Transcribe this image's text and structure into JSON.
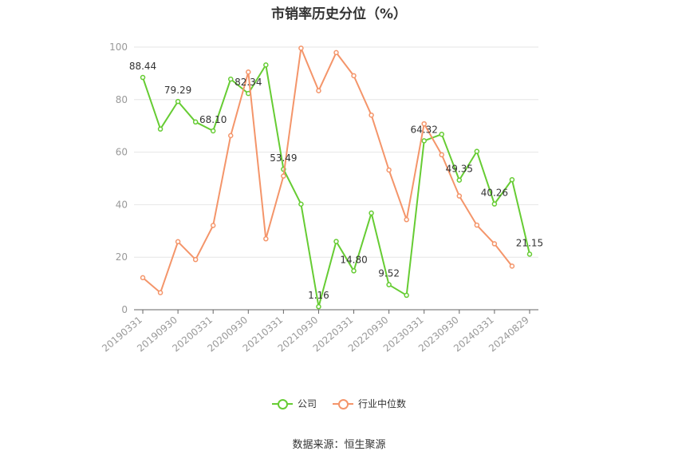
{
  "chart_data": {
    "type": "line",
    "title": "市销率历史分位（%）",
    "xlabel": "",
    "ylabel": "",
    "ylim": [
      0,
      100
    ],
    "yticks": [
      0,
      20,
      40,
      60,
      80,
      100
    ],
    "x": [
      "20190331",
      "20190630",
      "20190930",
      "20191231",
      "20200331",
      "20200630",
      "20200930",
      "20201231",
      "20210331",
      "20210630",
      "20210930",
      "20211231",
      "20220331",
      "20220630",
      "20220930",
      "20221231",
      "20230331",
      "20230630",
      "20230930",
      "20231231",
      "20240331",
      "20240630",
      "20240829"
    ],
    "xtick_labels": [
      "20190331",
      "20190930",
      "20200331",
      "20200930",
      "20210331",
      "20210930",
      "20220331",
      "20220930",
      "20230331",
      "20230930",
      "20240331",
      "20240829"
    ],
    "grid": true,
    "legend_position": "bottom",
    "series": [
      {
        "name": "公司",
        "color": "#66cc33",
        "values": [
          88.44,
          68.8,
          79.29,
          71.5,
          68.1,
          87.8,
          82.34,
          93.2,
          53.49,
          40.2,
          1.16,
          26.0,
          14.8,
          36.8,
          9.52,
          5.5,
          64.32,
          66.8,
          49.35,
          60.3,
          40.26,
          49.5,
          21.15
        ],
        "labels": {
          "0": "88.44",
          "2": "79.29",
          "4": "68.10",
          "6": "82.34",
          "8": "53.49",
          "10": "1.16",
          "12": "14.80",
          "14": "9.52",
          "16": "64.32",
          "18": "49.35",
          "20": "40.26",
          "22": "21.15"
        }
      },
      {
        "name": "行业中位数",
        "color": "#f4956a",
        "values": [
          12.2,
          6.5,
          25.9,
          19.1,
          32.1,
          66.3,
          90.5,
          27.0,
          50.9,
          99.6,
          83.4,
          97.9,
          89.1,
          74.1,
          53.2,
          34.3,
          70.8,
          59.0,
          43.3,
          32.2,
          25.1,
          16.6,
          null
        ]
      }
    ]
  },
  "legend": {
    "company": "公司",
    "industry": "行业中位数"
  },
  "source": "数据来源：恒生聚源"
}
